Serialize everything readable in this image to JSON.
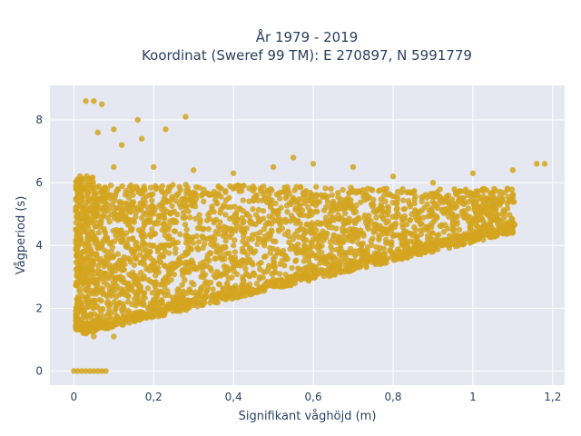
{
  "chart_data": {
    "type": "scatter",
    "title_lines": [
      "År 1979 - 2019",
      "Koordinat (Sweref 99 TM): E 270897, N 5991779"
    ],
    "xlabel": "Signifikant våghöjd (m)",
    "ylabel": "Vågperiod (s)",
    "xlim": [
      -0.06,
      1.23
    ],
    "ylim": [
      -0.45,
      9.1
    ],
    "xticks": [
      0,
      0.2,
      0.4,
      0.6,
      0.8,
      1,
      1.2
    ],
    "xtick_labels": [
      "0",
      "0,2",
      "0,4",
      "0,6",
      "0,8",
      "1",
      "1,2"
    ],
    "yticks": [
      0,
      2,
      4,
      6,
      8
    ],
    "ytick_labels": [
      "0",
      "2",
      "4",
      "6",
      "8"
    ],
    "grid": true,
    "marker_color": "#d4a520",
    "background_color": "#e5e8f1",
    "series": [
      {
        "points": [
          [
            0,
            0
          ],
          [
            0.01,
            0
          ],
          [
            0.02,
            0
          ],
          [
            0.03,
            0
          ],
          [
            0.04,
            0
          ],
          [
            0.05,
            0
          ],
          [
            0.06,
            0
          ],
          [
            0.07,
            0
          ],
          [
            0.08,
            0
          ],
          [
            0.005,
            1.4
          ],
          [
            0.005,
            1.8
          ],
          [
            0.005,
            4.5
          ],
          [
            0.005,
            5.1
          ],
          [
            0.01,
            2.3
          ],
          [
            0.01,
            3.5
          ],
          [
            0.03,
            8.6
          ],
          [
            0.05,
            8.6
          ],
          [
            0.07,
            8.5
          ],
          [
            0.06,
            7.6
          ],
          [
            0.1,
            7.7
          ],
          [
            0.16,
            8.0
          ],
          [
            0.23,
            7.7
          ],
          [
            0.28,
            8.1
          ],
          [
            0.17,
            7.4
          ],
          [
            0.12,
            7.2
          ],
          [
            0.05,
            1.1
          ],
          [
            0.1,
            1.1
          ],
          [
            0.15,
            1.6
          ],
          [
            0.2,
            1.8
          ],
          [
            0.3,
            2.1
          ],
          [
            0.4,
            2.4
          ],
          [
            0.5,
            2.7
          ],
          [
            0.6,
            3.0
          ],
          [
            0.7,
            3.3
          ],
          [
            0.8,
            3.6
          ],
          [
            0.9,
            3.9
          ],
          [
            1.0,
            4.2
          ],
          [
            1.05,
            4.5
          ],
          [
            0.1,
            6.5
          ],
          [
            0.2,
            6.5
          ],
          [
            0.3,
            6.4
          ],
          [
            0.4,
            6.3
          ],
          [
            0.5,
            6.5
          ],
          [
            0.55,
            6.8
          ],
          [
            0.6,
            6.6
          ],
          [
            0.7,
            6.5
          ],
          [
            0.8,
            6.2
          ],
          [
            0.9,
            6.0
          ],
          [
            1.0,
            6.3
          ],
          [
            1.1,
            6.4
          ],
          [
            1.16,
            6.6
          ],
          [
            1.18,
            6.6
          ],
          [
            0.2,
            4.0
          ],
          [
            0.4,
            4.0
          ],
          [
            0.6,
            4.2
          ],
          [
            0.8,
            4.3
          ],
          [
            1.0,
            4.8
          ],
          [
            1.1,
            5.5
          ]
        ]
      }
    ]
  }
}
